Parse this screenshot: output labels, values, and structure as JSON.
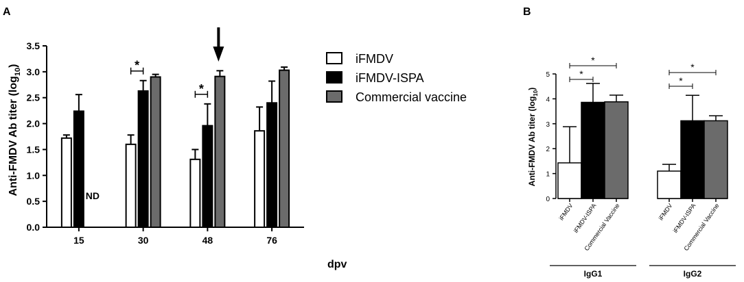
{
  "chart_data": [
    {
      "panel_label": "A",
      "type": "bar",
      "xlabel": "dpv",
      "ylabel": "Anti-FMDV Ab titer (log10)",
      "ylabel_parts": {
        "main": "Anti-FMDV Ab titer (log",
        "sub": "10",
        "close": ")"
      },
      "ylim": [
        0,
        3.5
      ],
      "yticks": [
        "0.0",
        "0.5",
        "1.0",
        "1.5",
        "2.0",
        "2.5",
        "3.0",
        "3.5"
      ],
      "categories": [
        "15",
        "30",
        "48",
        "76"
      ],
      "series": [
        {
          "name": "iFMDV",
          "color": "#ffffff",
          "values": [
            1.72,
            1.6,
            1.31,
            1.86
          ],
          "errors": [
            0.06,
            0.18,
            0.19,
            0.46
          ]
        },
        {
          "name": "iFMDV-ISPA",
          "color": "#000000",
          "values": [
            2.24,
            2.63,
            1.96,
            2.4
          ],
          "errors": [
            0.32,
            0.2,
            0.42,
            0.42
          ]
        },
        {
          "name": "Commercial vaccine",
          "color": "#6b6b6b",
          "values": [
            null,
            2.9,
            2.91,
            3.03
          ],
          "errors": [
            null,
            0.05,
            0.11,
            0.06
          ]
        }
      ],
      "annotations": [
        {
          "text": "ND",
          "category": "15",
          "series": "Commercial vaccine"
        },
        {
          "text": "*",
          "category": "30",
          "between": [
            "iFMDV",
            "iFMDV-ISPA"
          ]
        },
        {
          "text": "*",
          "category": "48",
          "between": [
            "iFMDV",
            "iFMDV-ISPA"
          ]
        }
      ],
      "arrow_category": "48",
      "legend_position": "top-right",
      "grid": false
    },
    {
      "panel_label": "B",
      "type": "bar",
      "xlabel": "",
      "ylabel": "Anti-FMDV Ab titer (log10)",
      "ylabel_parts": {
        "main": "Anti-FMDV Ab titer (log",
        "sub": "10",
        "close": ")"
      },
      "ylim": [
        0,
        5
      ],
      "yticks": [
        "0",
        "1",
        "2",
        "3",
        "4",
        "5"
      ],
      "groups": [
        "IgG1",
        "IgG2"
      ],
      "categories": [
        "iFMDV",
        "iFMDV-ISPA",
        "Commercial Vaccine"
      ],
      "series": [
        {
          "group": "IgG1",
          "values": [
            1.43,
            3.86,
            3.88
          ],
          "errors": [
            1.45,
            0.76,
            0.27
          ],
          "colors": [
            "#ffffff",
            "#000000",
            "#6b6b6b"
          ]
        },
        {
          "group": "IgG2",
          "values": [
            1.1,
            3.12,
            3.12
          ],
          "errors": [
            0.27,
            1.02,
            0.2
          ],
          "colors": [
            "#ffffff",
            "#000000",
            "#6b6b6b"
          ]
        }
      ],
      "annotations": [
        {
          "text": "*",
          "group": "IgG1",
          "between": [
            "iFMDV",
            "iFMDV-ISPA"
          ]
        },
        {
          "text": "*",
          "group": "IgG1",
          "between": [
            "iFMDV",
            "Commercial Vaccine"
          ]
        },
        {
          "text": "*",
          "group": "IgG2",
          "between": [
            "iFMDV",
            "iFMDV-ISPA"
          ]
        },
        {
          "text": "*",
          "group": "IgG2",
          "between": [
            "iFMDV",
            "Commercial Vaccine"
          ]
        }
      ],
      "grid": false
    }
  ]
}
